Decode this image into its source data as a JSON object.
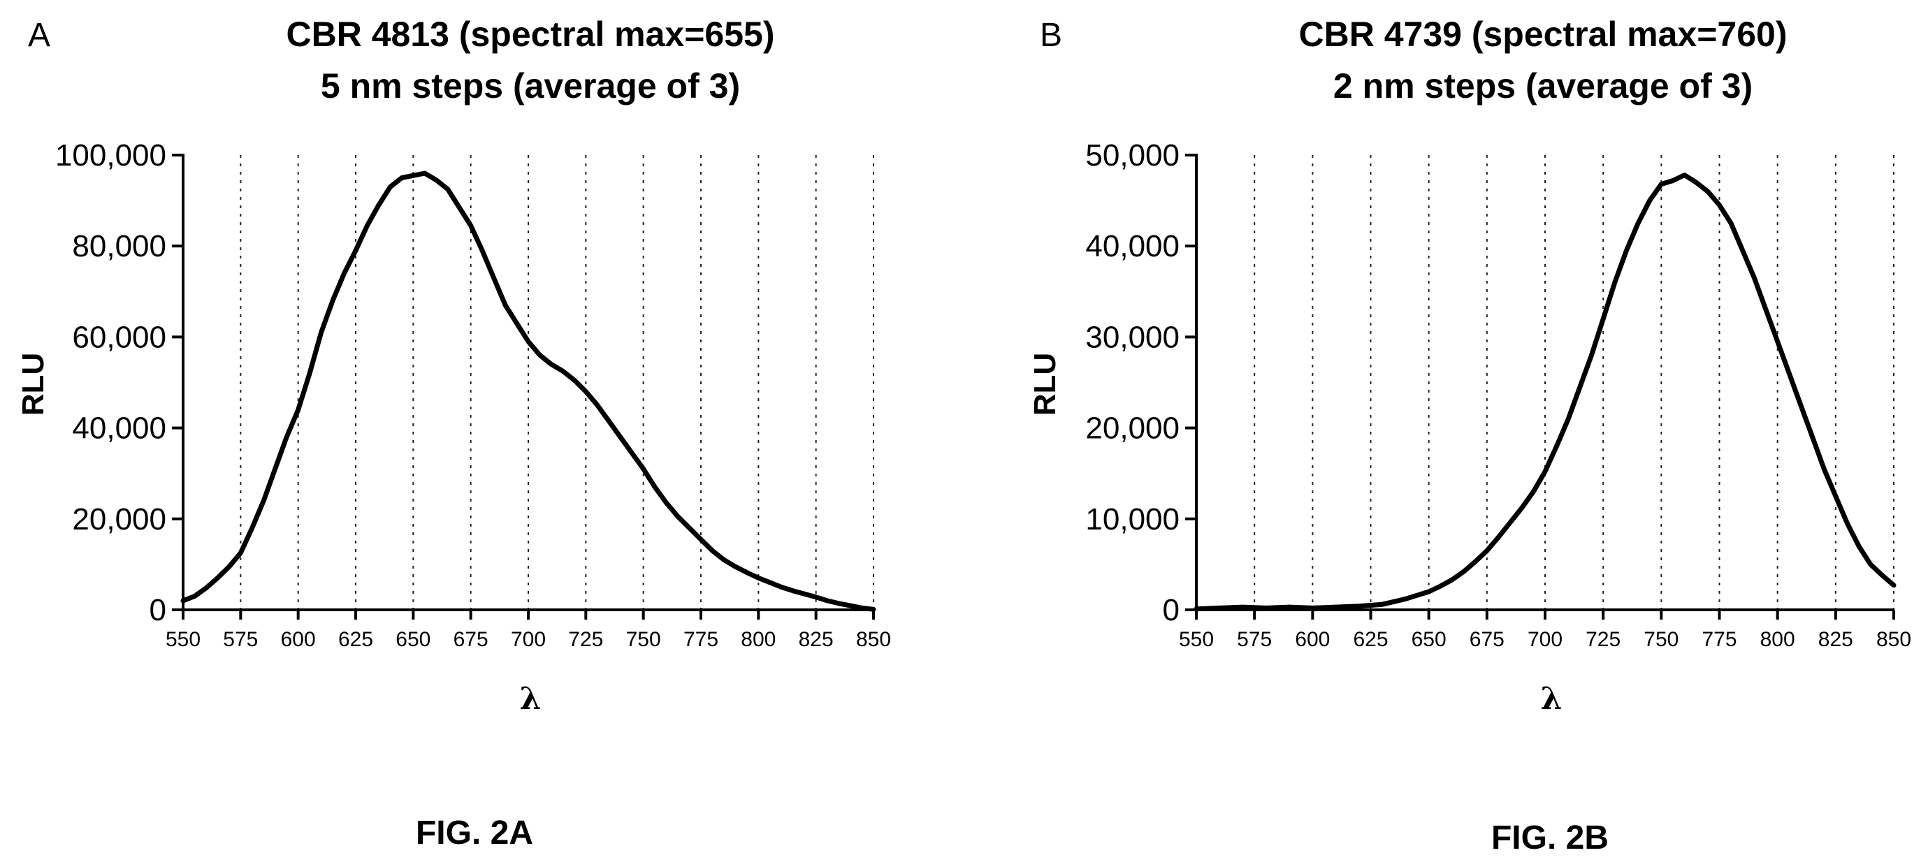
{
  "chart_data": [
    {
      "type": "line",
      "panel_letter": "A",
      "title": [
        "CBR 4813 (spectral max=655)",
        "5 nm steps (average of 3)"
      ],
      "xlabel": "λ",
      "ylabel": "RLU",
      "xlim": [
        550,
        850
      ],
      "ylim": [
        0,
        100000
      ],
      "xticks": [
        550,
        575,
        600,
        625,
        650,
        675,
        700,
        725,
        750,
        775,
        800,
        825,
        850
      ],
      "yticks": [
        0,
        20000,
        40000,
        60000,
        80000,
        100000
      ],
      "ytick_labels": [
        "0",
        "20,000",
        "40,000",
        "60,000",
        "80,000",
        "100,000"
      ],
      "grid": "vertical dotted at each x tick",
      "figure_label": "FIG. 2A",
      "series": [
        {
          "x": [
            550,
            555,
            560,
            565,
            570,
            575,
            580,
            585,
            590,
            595,
            600,
            605,
            610,
            615,
            620,
            625,
            630,
            635,
            640,
            645,
            650,
            655,
            660,
            665,
            670,
            675,
            680,
            685,
            690,
            695,
            700,
            705,
            710,
            715,
            720,
            725,
            730,
            735,
            740,
            745,
            750,
            755,
            760,
            765,
            770,
            775,
            780,
            785,
            790,
            795,
            800,
            805,
            810,
            815,
            820,
            825,
            830,
            835,
            840,
            845,
            850
          ],
          "y": [
            2000,
            3000,
            4800,
            7000,
            9500,
            12500,
            18000,
            24000,
            31000,
            38000,
            44000,
            52000,
            61000,
            68000,
            74000,
            79000,
            84500,
            89000,
            93000,
            95000,
            95500,
            96000,
            94500,
            92500,
            88500,
            84500,
            79000,
            73000,
            67000,
            63000,
            59000,
            56000,
            54000,
            52500,
            50500,
            48000,
            45000,
            41500,
            38000,
            34500,
            31000,
            27000,
            23500,
            20500,
            18000,
            15500,
            13000,
            11000,
            9500,
            8200,
            7000,
            6000,
            5000,
            4200,
            3500,
            2800,
            2000,
            1400,
            900,
            400,
            100
          ]
        }
      ]
    },
    {
      "type": "line",
      "panel_letter": "B",
      "title": [
        "CBR 4739 (spectral max=760)",
        "2 nm steps (average of 3)"
      ],
      "xlabel": "λ",
      "ylabel": "RLU",
      "xlim": [
        550,
        850
      ],
      "ylim": [
        0,
        50000
      ],
      "xticks": [
        550,
        575,
        600,
        625,
        650,
        675,
        700,
        725,
        750,
        775,
        800,
        825,
        850
      ],
      "yticks": [
        0,
        10000,
        20000,
        30000,
        40000,
        50000
      ],
      "ytick_labels": [
        "0",
        "10,000",
        "20,000",
        "30,000",
        "40,000",
        "50,000"
      ],
      "grid": "vertical dotted at each x tick",
      "figure_label": "FIG. 2B",
      "series": [
        {
          "x": [
            550,
            560,
            570,
            580,
            590,
            600,
            610,
            620,
            630,
            635,
            640,
            645,
            650,
            655,
            660,
            665,
            670,
            675,
            680,
            685,
            690,
            695,
            700,
            705,
            710,
            715,
            720,
            725,
            730,
            735,
            740,
            745,
            750,
            755,
            760,
            765,
            770,
            775,
            780,
            785,
            790,
            795,
            800,
            805,
            810,
            815,
            820,
            825,
            830,
            835,
            840,
            845,
            850
          ],
          "y": [
            100,
            200,
            300,
            200,
            300,
            200,
            300,
            400,
            600,
            900,
            1200,
            1600,
            2000,
            2600,
            3300,
            4200,
            5300,
            6500,
            8000,
            9600,
            11200,
            13000,
            15200,
            18000,
            21000,
            24500,
            28000,
            32000,
            36000,
            39500,
            42500,
            45000,
            46800,
            47200,
            47800,
            47000,
            46000,
            44500,
            42500,
            39500,
            36500,
            33000,
            29500,
            26000,
            22500,
            19000,
            15500,
            12500,
            9500,
            7000,
            5000,
            3800,
            2700
          ]
        }
      ]
    }
  ]
}
